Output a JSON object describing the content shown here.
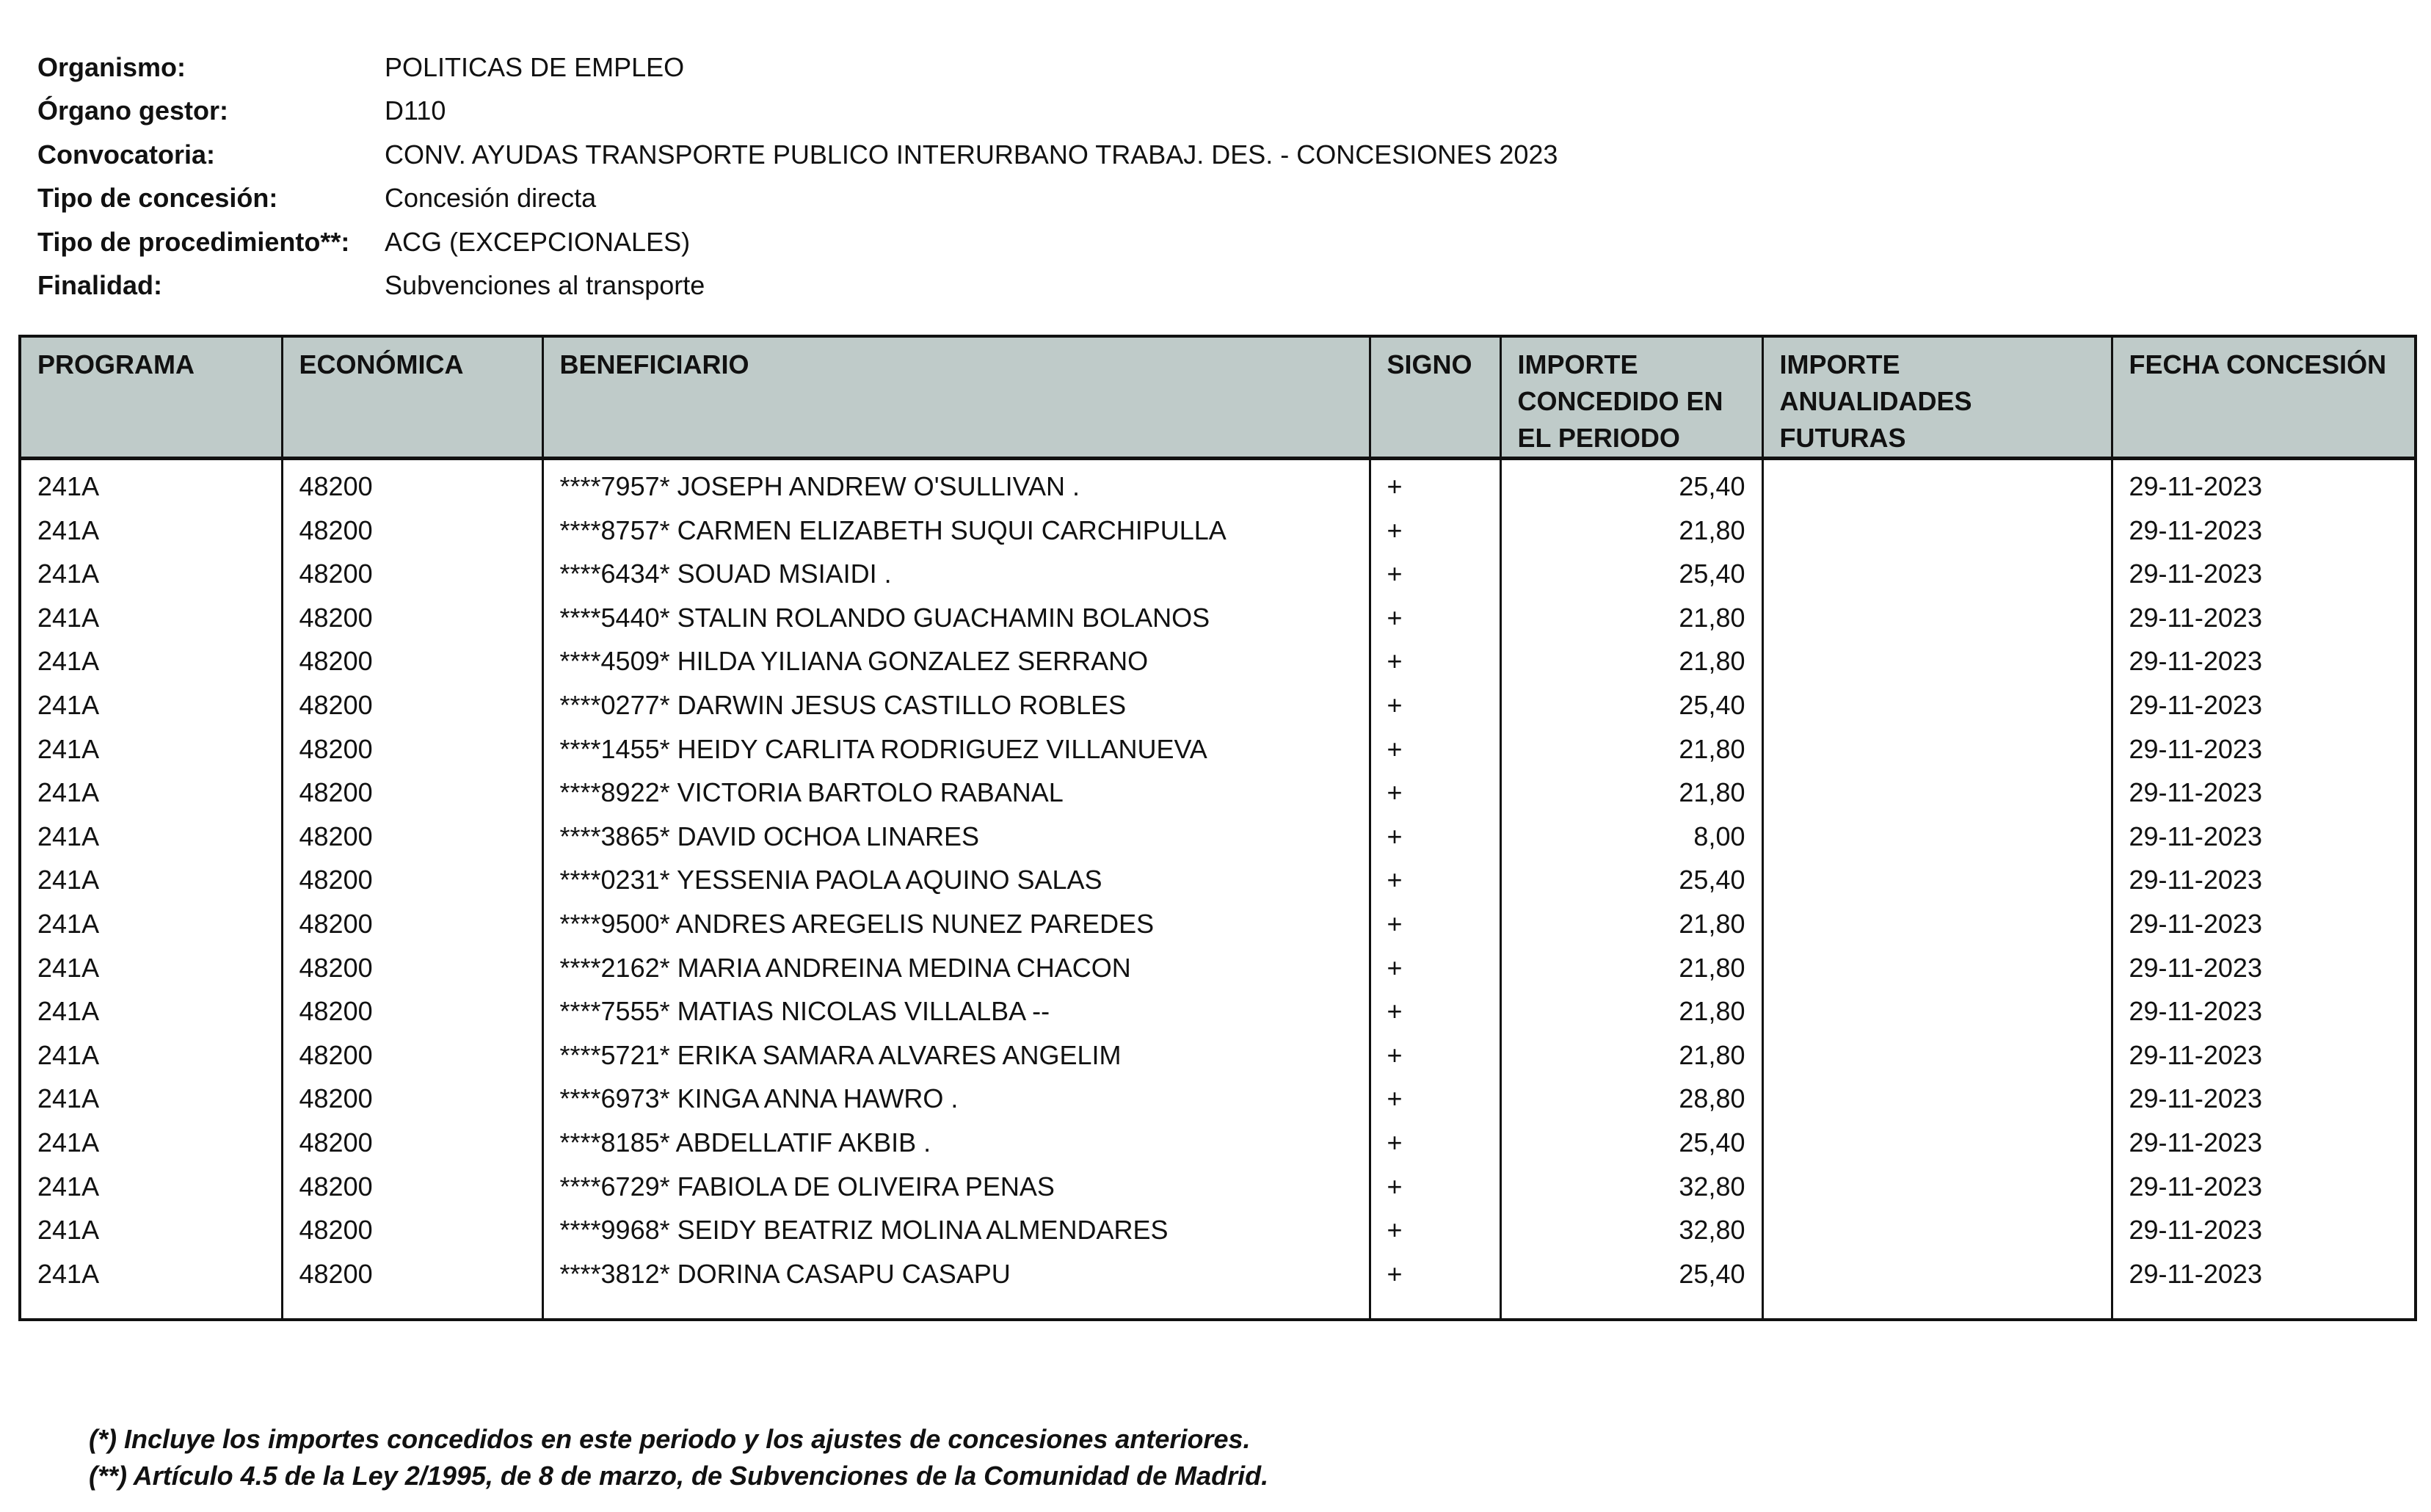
{
  "meta": [
    {
      "label": "Organismo:",
      "value": "POLITICAS DE EMPLEO"
    },
    {
      "label": "Órgano gestor:",
      "value": "D110"
    },
    {
      "label": "Convocatoria:",
      "value": "CONV. AYUDAS TRANSPORTE PUBLICO INTERURBANO TRABAJ. DES. - CONCESIONES 2023"
    },
    {
      "label": "Tipo de concesión:",
      "value": "Concesión directa"
    },
    {
      "label": "Tipo de procedimiento**:",
      "value": "ACG (EXCEPCIONALES)"
    },
    {
      "label": "Finalidad:",
      "value": "Subvenciones al transporte"
    }
  ],
  "table": {
    "header_bg": "#bfcbc9",
    "columns": [
      "PROGRAMA",
      "ECONÓMICA",
      "BENEFICIARIO",
      "SIGNO",
      "IMPORTE CONCEDIDO EN EL PERIODO",
      "IMPORTE ANUALIDADES FUTURAS",
      "FECHA CONCESIÓN"
    ],
    "rows": [
      [
        "241A",
        "48200",
        "****7957* JOSEPH ANDREW O'SULLIVAN .",
        "+",
        "25,40",
        "",
        "29-11-2023"
      ],
      [
        "241A",
        "48200",
        "****8757* CARMEN ELIZABETH SUQUI CARCHIPULLA",
        "+",
        "21,80",
        "",
        "29-11-2023"
      ],
      [
        "241A",
        "48200",
        "****6434* SOUAD MSIAIDI .",
        "+",
        "25,40",
        "",
        "29-11-2023"
      ],
      [
        "241A",
        "48200",
        "****5440* STALIN ROLANDO GUACHAMIN BOLANOS",
        "+",
        "21,80",
        "",
        "29-11-2023"
      ],
      [
        "241A",
        "48200",
        "****4509* HILDA YILIANA GONZALEZ SERRANO",
        "+",
        "21,80",
        "",
        "29-11-2023"
      ],
      [
        "241A",
        "48200",
        "****0277* DARWIN JESUS CASTILLO ROBLES",
        "+",
        "25,40",
        "",
        "29-11-2023"
      ],
      [
        "241A",
        "48200",
        "****1455* HEIDY CARLITA RODRIGUEZ VILLANUEVA",
        "+",
        "21,80",
        "",
        "29-11-2023"
      ],
      [
        "241A",
        "48200",
        "****8922* VICTORIA BARTOLO RABANAL",
        "+",
        "21,80",
        "",
        "29-11-2023"
      ],
      [
        "241A",
        "48200",
        "****3865* DAVID OCHOA LINARES",
        "+",
        "8,00",
        "",
        "29-11-2023"
      ],
      [
        "241A",
        "48200",
        "****0231* YESSENIA PAOLA AQUINO SALAS",
        "+",
        "25,40",
        "",
        "29-11-2023"
      ],
      [
        "241A",
        "48200",
        "****9500* ANDRES AREGELIS NUNEZ PAREDES",
        "+",
        "21,80",
        "",
        "29-11-2023"
      ],
      [
        "241A",
        "48200",
        "****2162* MARIA ANDREINA MEDINA CHACON",
        "+",
        "21,80",
        "",
        "29-11-2023"
      ],
      [
        "241A",
        "48200",
        "****7555* MATIAS NICOLAS VILLALBA --",
        "+",
        "21,80",
        "",
        "29-11-2023"
      ],
      [
        "241A",
        "48200",
        "****5721* ERIKA SAMARA ALVARES ANGELIM",
        "+",
        "21,80",
        "",
        "29-11-2023"
      ],
      [
        "241A",
        "48200",
        "****6973* KINGA ANNA HAWRO .",
        "+",
        "28,80",
        "",
        "29-11-2023"
      ],
      [
        "241A",
        "48200",
        "****8185* ABDELLATIF AKBIB .",
        "+",
        "25,40",
        "",
        "29-11-2023"
      ],
      [
        "241A",
        "48200",
        "****6729* FABIOLA DE OLIVEIRA PENAS",
        "+",
        "32,80",
        "",
        "29-11-2023"
      ],
      [
        "241A",
        "48200",
        "****9968* SEIDY BEATRIZ MOLINA ALMENDARES",
        "+",
        "32,80",
        "",
        "29-11-2023"
      ],
      [
        "241A",
        "48200",
        "****3812* DORINA CASAPU CASAPU",
        "+",
        "25,40",
        "",
        "29-11-2023"
      ]
    ]
  },
  "footnotes": [
    "(*) Incluye los importes concedidos en este periodo y los ajustes de concesiones anteriores.",
    "(**) Artículo 4.5 de la Ley 2/1995, de 8 de marzo, de Subvenciones de la Comunidad de Madrid."
  ]
}
